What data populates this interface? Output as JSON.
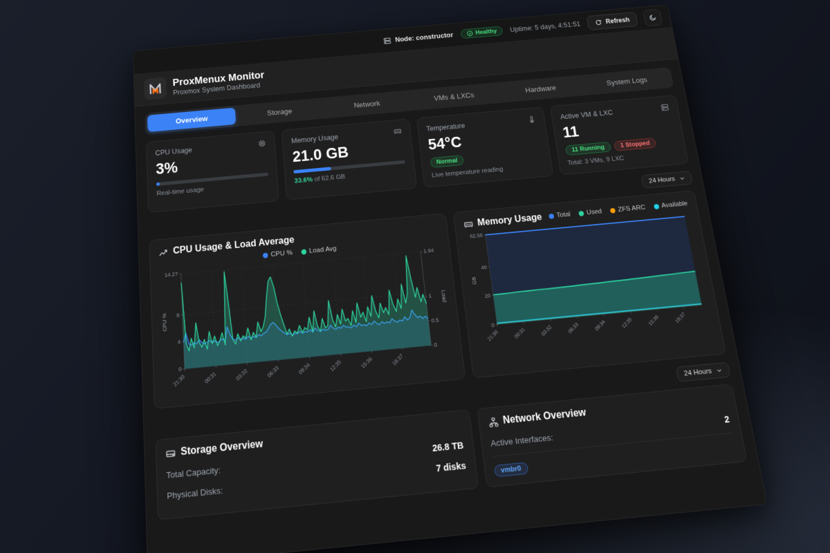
{
  "topbar": {
    "node_label": "Node: constructor",
    "health_label": "Healthy",
    "uptime": "Uptime: 5 days, 4:51:51",
    "refresh_label": "Refresh"
  },
  "brand": {
    "title": "ProxMenux Monitor",
    "subtitle": "Proxmox System Dashboard"
  },
  "tabs": {
    "items": [
      {
        "label": "Overview",
        "active": true
      },
      {
        "label": "Storage",
        "active": false
      },
      {
        "label": "Network",
        "active": false
      },
      {
        "label": "VMs & LXCs",
        "active": false
      },
      {
        "label": "Hardware",
        "active": false
      },
      {
        "label": "System Logs",
        "active": false
      }
    ]
  },
  "stat_cards": {
    "cpu": {
      "label": "CPU Usage",
      "value": "3%",
      "percent": 3,
      "caption": "Real-time usage"
    },
    "memory": {
      "label": "Memory Usage",
      "value": "21.0 GB",
      "percent": 33.6,
      "caption_highlight": "33.6%",
      "caption_rest": " of 62.6 GB"
    },
    "temperature": {
      "label": "Temperature",
      "value": "54°C",
      "badge": "Normal",
      "caption": "Live temperature reading"
    },
    "vms": {
      "label": "Active VM & LXC",
      "value": "11",
      "badge_running": "11 Running",
      "badge_stopped": "1 Stopped",
      "caption": "Total: 3 VMs, 9 LXC"
    }
  },
  "time_selector": {
    "label": "24 Hours"
  },
  "time_selector2": {
    "label": "24 Hours"
  },
  "storage": {
    "title": "Storage Overview",
    "rows": [
      {
        "label": "Total Capacity:",
        "value": "26.8 TB"
      },
      {
        "label": "Physical Disks:",
        "value": "7 disks"
      }
    ]
  },
  "network": {
    "title": "Network Overview",
    "rows": [
      {
        "label": "Active Interfaces:",
        "value": "2"
      }
    ],
    "interface_pill": "vmbr0"
  },
  "colors": {
    "accent_blue": "#3b82f6",
    "healthy_green": "#22c55e",
    "stopped_red": "#ef4444",
    "chart_green": "#2dd4a0",
    "zfs_orange": "#f59e0b",
    "available_cyan": "#22d3ee"
  },
  "icons": {
    "server": "rack-svg",
    "check": "✓",
    "refresh": "⟳",
    "moon": "☾",
    "cpu": "chip-svg",
    "ram": "ram-svg",
    "thermometer": "thermo-svg",
    "trend": "trend-svg",
    "disk": "disk-svg",
    "network": "nodes-svg",
    "chevron": "⌄"
  },
  "chart_data": [
    {
      "type": "area",
      "title": "CPU Usage & Load Average",
      "legend_position": "top-center",
      "grid": true,
      "x_tick_labels": [
        "21:30",
        "00:31",
        "03:32",
        "06:33",
        "09:34",
        "12:35",
        "15:36",
        "18:37"
      ],
      "y_axis": {
        "label": "CPU %",
        "lim": [
          0,
          14.27
        ],
        "ticks": [
          0,
          4,
          8,
          14.27
        ]
      },
      "y2_axis": {
        "label": "Load",
        "lim": [
          0,
          1.94
        ],
        "ticks": [
          0,
          0.5,
          1,
          1.94
        ]
      },
      "series": [
        {
          "name": "CPU %",
          "color": "#3b82f6",
          "axis": "y",
          "width": 1.6,
          "fill": "rgba(59,130,246,0.18)",
          "values": [
            3.9,
            5.2,
            3.6,
            3.4,
            3.7,
            3.5,
            4.1,
            3.6,
            3.4,
            3.6,
            3.8,
            3.5,
            3.7,
            3.4,
            3.6,
            3.9,
            3.5,
            5.6,
            4.4,
            3.7,
            3.5,
            3.8,
            3.6,
            3.7,
            3.5,
            3.9,
            3.6,
            3.8,
            3.6,
            4.0,
            3.8,
            4.1,
            4.3,
            4.8,
            5.4,
            5.6,
            5.1,
            4.6,
            4.2,
            3.9,
            3.6,
            3.8,
            3.5,
            3.7,
            3.6,
            3.9,
            3.6,
            3.8,
            3.7,
            4.0,
            3.6,
            4.2,
            3.8,
            3.6,
            3.9,
            3.7,
            3.8,
            4.4,
            3.9,
            3.7,
            4.0,
            3.8,
            4.2,
            3.9,
            3.9,
            3.7,
            4.1,
            3.8,
            4.3,
            3.9,
            4.0,
            3.8,
            4.2,
            3.9,
            4.4,
            4.0,
            3.8,
            4.2,
            3.9,
            4.1,
            3.9,
            4.5,
            4.1,
            3.9,
            4.2,
            4.0,
            4.6,
            4.1,
            4.4,
            5.5,
            4.8,
            4.3,
            4.5,
            4.1,
            4.4,
            4.0
          ]
        },
        {
          "name": "Load Avg",
          "color": "#2dd4a0",
          "axis": "y2",
          "width": 1.4,
          "fill": "rgba(45,212,160,0.28)",
          "values": [
            1.75,
            0.5,
            0.35,
            0.6,
            0.4,
            0.9,
            0.5,
            0.4,
            0.55,
            0.35,
            0.7,
            0.45,
            0.6,
            0.4,
            0.5,
            0.65,
            0.4,
            1.9,
            1.25,
            0.5,
            0.4,
            0.6,
            0.45,
            0.55,
            0.5,
            0.7,
            0.45,
            0.6,
            0.5,
            0.8,
            0.6,
            0.7,
            0.9,
            1.3,
            1.62,
            1.7,
            1.5,
            1.15,
            0.9,
            0.7,
            0.5,
            0.6,
            0.45,
            0.55,
            0.5,
            0.65,
            0.5,
            0.6,
            0.55,
            0.8,
            0.5,
            0.92,
            0.6,
            0.5,
            0.75,
            0.55,
            0.6,
            1.1,
            0.7,
            0.55,
            0.8,
            0.6,
            0.9,
            0.65,
            0.7,
            0.55,
            0.85,
            0.6,
            1.0,
            0.7,
            0.8,
            0.6,
            0.9,
            0.7,
            1.12,
            0.8,
            0.65,
            0.95,
            0.75,
            0.85,
            0.7,
            1.2,
            0.9,
            0.75,
            1.0,
            0.8,
            1.3,
            0.9,
            1.1,
            1.88,
            1.4,
            1.0,
            1.2,
            0.9,
            1.05,
            0.85
          ]
        }
      ]
    },
    {
      "type": "area",
      "title": "Memory Usage",
      "legend_position": "top-right",
      "grid": true,
      "x_tick_labels": [
        "21:30",
        "00:31",
        "03:32",
        "06:33",
        "09:34",
        "12:35",
        "15:36",
        "18:37"
      ],
      "y_axis": {
        "label": "GB",
        "lim": [
          0,
          62.56
        ],
        "ticks": [
          0,
          20,
          40,
          62.56
        ]
      },
      "series": [
        {
          "name": "Total",
          "color": "#3b82f6",
          "axis": "y",
          "width": 2,
          "fill": "rgba(30,41,66,0.92)",
          "values": [
            62.56,
            62.56,
            62.56,
            62.56,
            62.56,
            62.56,
            62.56,
            62.56,
            62.56,
            62.56,
            62.56,
            62.56,
            62.56,
            62.56,
            62.56,
            62.56,
            62.56,
            62.56,
            62.56,
            62.56,
            62.56,
            62.56,
            62.56,
            62.56
          ]
        },
        {
          "name": "Used",
          "color": "#2dd4a0",
          "axis": "y",
          "width": 2,
          "fill": "rgba(34,104,96,0.85)",
          "values": [
            20.4,
            20.5,
            20.6,
            20.8,
            20.9,
            21.0,
            21.0,
            21.1,
            21.2,
            21.3,
            21.5,
            21.6,
            21.7,
            21.9,
            22.0,
            22.1,
            22.3,
            22.4,
            22.6,
            22.8,
            23.0,
            23.2,
            23.4,
            23.6
          ]
        },
        {
          "name": "ZFS ARC",
          "color": "#f59e0b",
          "axis": "y",
          "width": 1.4,
          "fill": "none",
          "values": [
            0.8,
            0.8,
            0.8,
            0.8,
            0.8,
            0.8,
            0.8,
            0.8,
            0.8,
            0.8,
            0.8,
            0.8,
            0.8,
            0.8,
            0.8,
            0.8,
            0.8,
            0.8,
            0.8,
            0.8,
            0.8,
            0.8,
            0.8,
            0.8
          ]
        },
        {
          "name": "Available",
          "color": "#22d3ee",
          "axis": "y",
          "width": 1.6,
          "fill": "none",
          "values": [
            0.9,
            0.9,
            0.9,
            0.9,
            0.9,
            0.9,
            0.9,
            0.9,
            0.9,
            0.9,
            0.9,
            0.9,
            0.9,
            0.9,
            0.9,
            0.9,
            0.9,
            0.9,
            0.9,
            0.9,
            0.9,
            0.9,
            0.9,
            0.9
          ]
        }
      ]
    }
  ]
}
